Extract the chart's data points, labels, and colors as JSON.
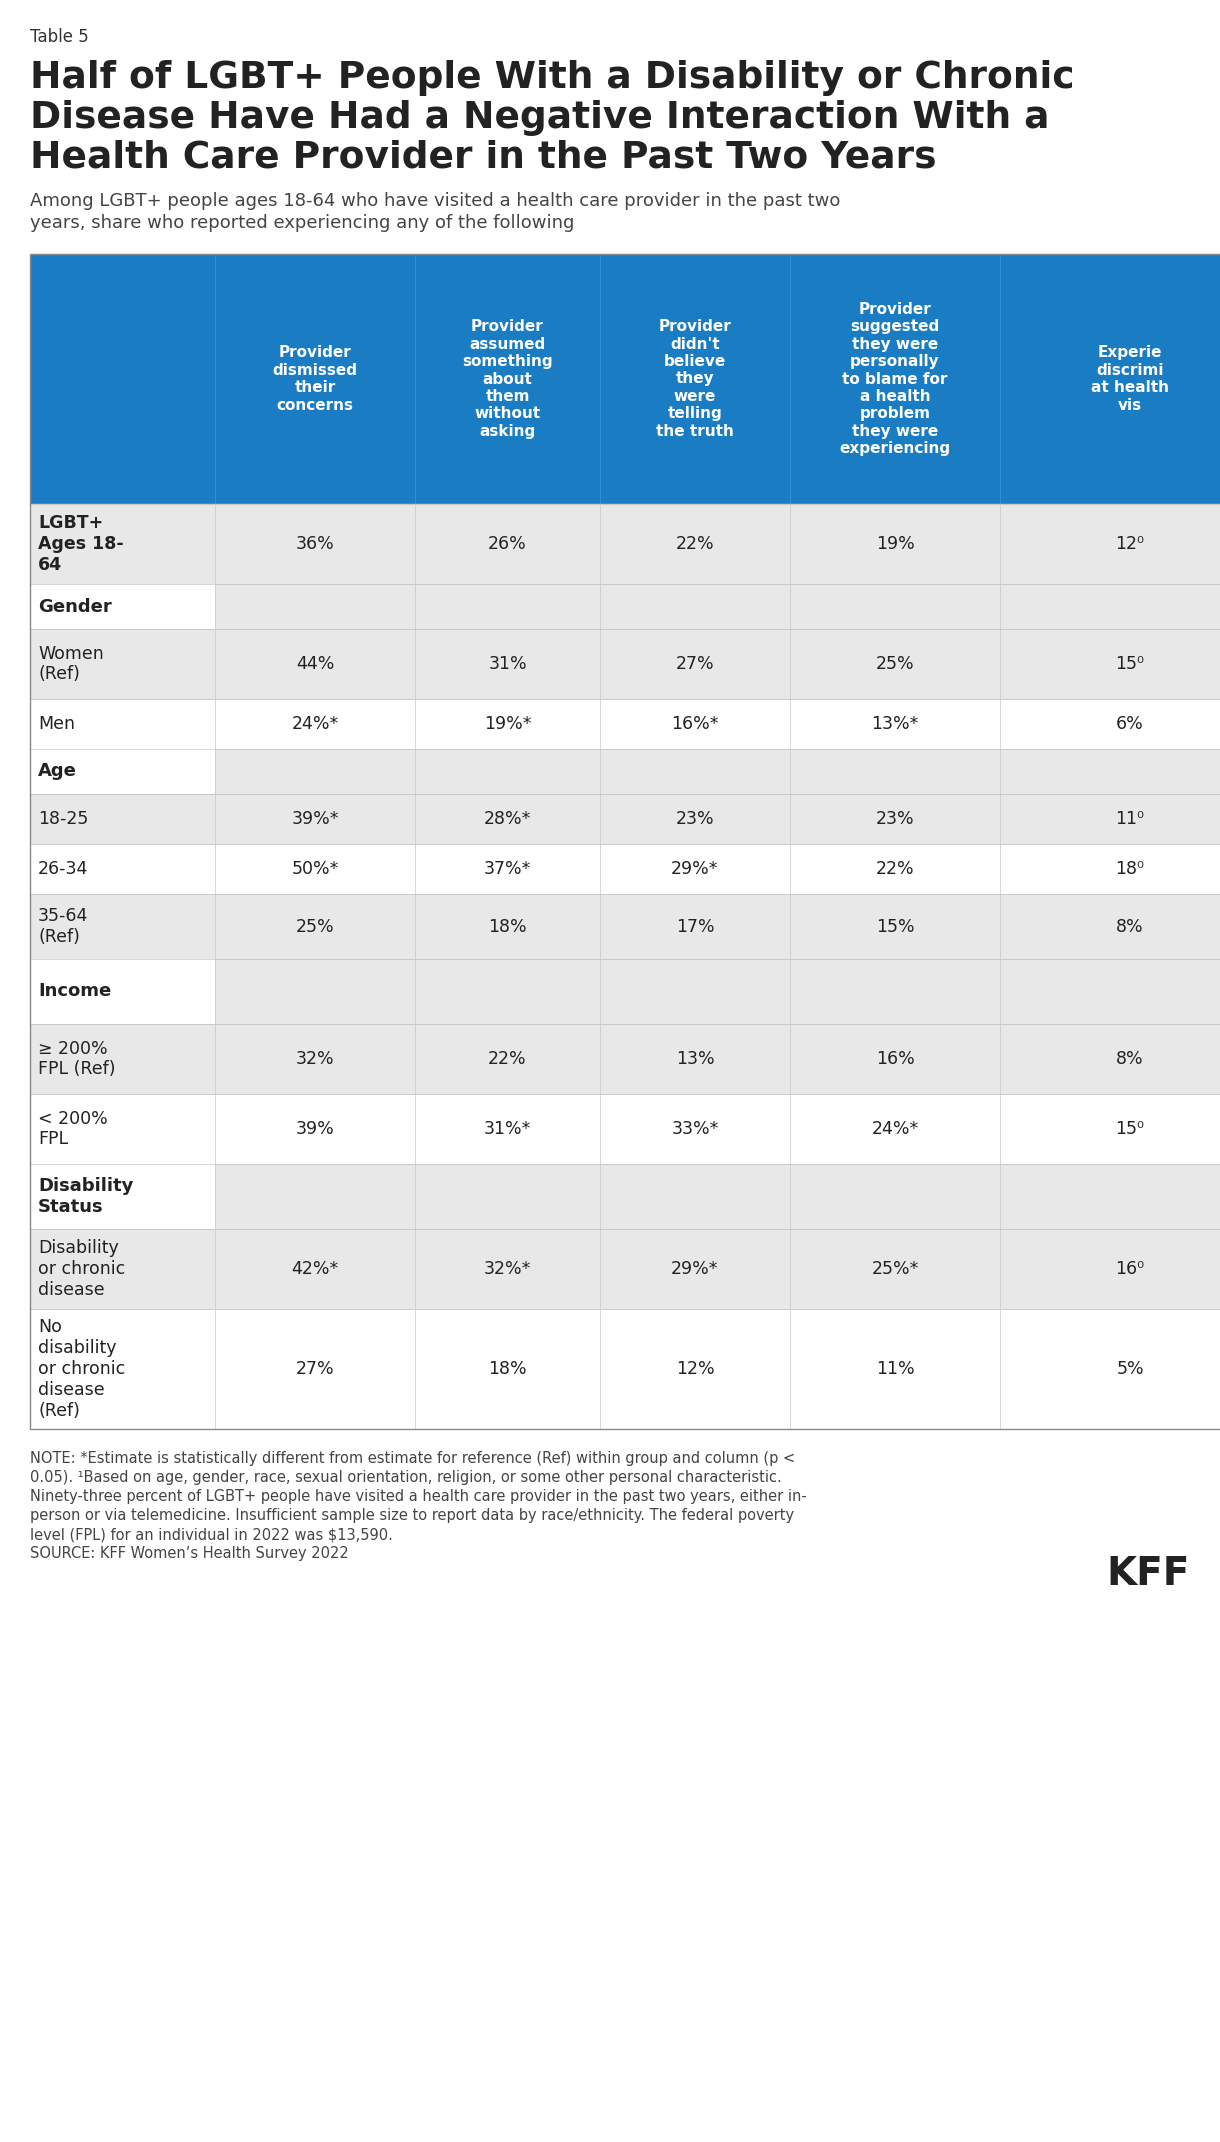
{
  "table_label": "Table 5",
  "title_lines": [
    "Half of LGBT+ People With a Disability or Chronic",
    "Disease Have Had a Negative Interaction With a",
    "Health Care Provider in the Past Two Years"
  ],
  "subtitle_lines": [
    "Among LGBT+ people ages 18-64 who have visited a health care provider in the past two",
    "years, share who reported experiencing any of the following"
  ],
  "header_bg": "#1a7dc4",
  "header_text_color": "#ffffff",
  "col_headers": [
    "Provider\ndismissed\ntheir\nconcerns",
    "Provider\nassumed\nsomething\nabout\nthem\nwithout\nasking",
    "Provider\ndidn't\nbelieve\nthey\nwere\ntelling\nthe truth",
    "Provider\nsuggested\nthey were\npersonally\nto blame for\na health\nproblem\nthey were\nexperiencing",
    "Experie\ndiscrimi\nat health\nvis"
  ],
  "row_groups": [
    {
      "label": "",
      "is_header": false,
      "rows": [
        {
          "label": "LGBT+\nAges 18-\n64",
          "values": [
            "36%",
            "26%",
            "22%",
            "19%",
            "12⁰"
          ],
          "bold_label": true,
          "shaded": true
        }
      ]
    },
    {
      "label": "Gender",
      "is_header": true,
      "rows": [
        {
          "label": "Women\n(Ref)",
          "values": [
            "44%",
            "31%",
            "27%",
            "25%",
            "15⁰"
          ],
          "bold_label": false,
          "shaded": true
        },
        {
          "label": "Men",
          "values": [
            "24%*",
            "19%*",
            "16%*",
            "13%*",
            "6%"
          ],
          "bold_label": false,
          "shaded": false
        }
      ]
    },
    {
      "label": "Age",
      "is_header": true,
      "rows": [
        {
          "label": "18-25",
          "values": [
            "39%*",
            "28%*",
            "23%",
            "23%",
            "11⁰"
          ],
          "bold_label": false,
          "shaded": true
        },
        {
          "label": "26-34",
          "values": [
            "50%*",
            "37%*",
            "29%*",
            "22%",
            "18⁰"
          ],
          "bold_label": false,
          "shaded": false
        },
        {
          "label": "35-64\n(Ref)",
          "values": [
            "25%",
            "18%",
            "17%",
            "15%",
            "8%"
          ],
          "bold_label": false,
          "shaded": true
        }
      ]
    },
    {
      "label": "Income",
      "is_header": true,
      "rows": [
        {
          "label": "≥ 200%\nFPL (Ref)",
          "values": [
            "32%",
            "22%",
            "13%",
            "16%",
            "8%"
          ],
          "bold_label": false,
          "shaded": true
        },
        {
          "label": "< 200%\nFPL",
          "values": [
            "39%",
            "31%*",
            "33%*",
            "24%*",
            "15⁰"
          ],
          "bold_label": false,
          "shaded": false
        }
      ]
    },
    {
      "label": "Disability\nStatus",
      "is_header": true,
      "rows": [
        {
          "label": "Disability\nor chronic\ndisease",
          "values": [
            "42%*",
            "32%*",
            "29%*",
            "25%*",
            "16⁰"
          ],
          "bold_label": false,
          "shaded": true
        },
        {
          "label": "No\ndisability\nor chronic\ndisease\n(Ref)",
          "values": [
            "27%",
            "18%",
            "12%",
            "11%",
            "5%"
          ],
          "bold_label": false,
          "shaded": false
        }
      ]
    }
  ],
  "note_lines": [
    "NOTE: *Estimate is statistically different from estimate for reference (Ref) within group and column (p <",
    "0.05). ¹Based on age, gender, race, sexual orientation, religion, or some other personal characteristic.",
    "Ninety-three percent of LGBT+ people have visited a health care provider in the past two years, either in-",
    "person or via telemedicine. Insufficient sample size to report data by race/ethnicity. The federal poverty",
    "level (FPL) for an individual in 2022 was $13,590.",
    "SOURCE: KFF Women’s Health Survey 2022"
  ],
  "bg_shaded": "#e8e8e8",
  "bg_white": "#ffffff",
  "border_color": "#c8c8c8",
  "text_color": "#222222",
  "header_row_heights": [
    45,
    45,
    65,
    45,
    65
  ],
  "data_row_heights": [
    80,
    70,
    50,
    50,
    50,
    65,
    70,
    70,
    80,
    120
  ]
}
